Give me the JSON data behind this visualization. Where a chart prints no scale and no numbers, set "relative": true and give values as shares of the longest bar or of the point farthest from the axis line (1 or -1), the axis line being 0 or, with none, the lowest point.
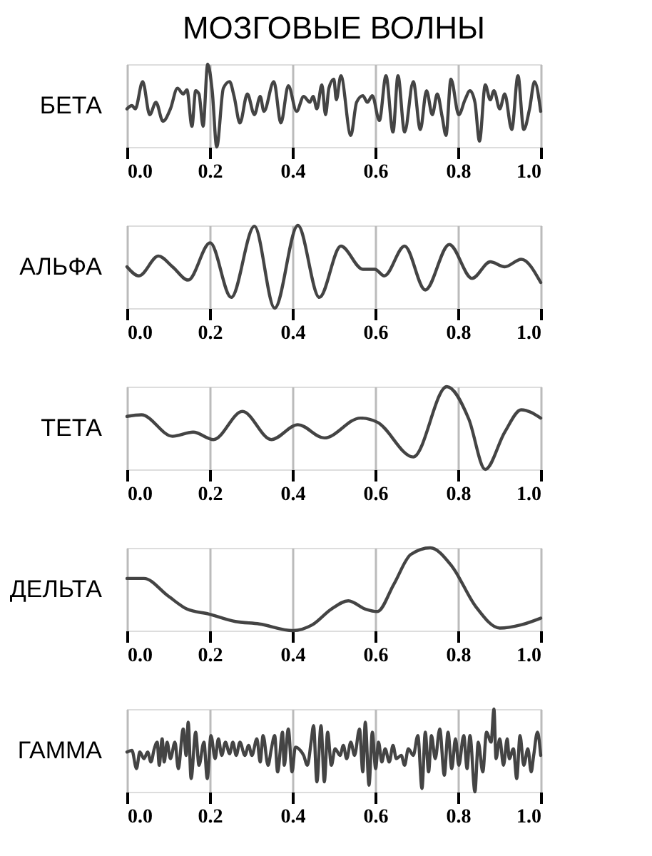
{
  "chart_data": [
    {
      "type": "line",
      "title": "МОЗГОВЫЕ ВОЛНЫ",
      "ylabel": "БЕТА",
      "relative": true,
      "grid": "x",
      "xlim": [
        0,
        1
      ],
      "xticks": [
        {
          "value": 0,
          "label": "0.0"
        },
        {
          "value": 0.2,
          "label": "0.2"
        },
        {
          "value": 0.4,
          "label": "0.4"
        },
        {
          "value": 0.6,
          "label": "0.6"
        },
        {
          "value": 0.8,
          "label": "0.8"
        },
        {
          "value": 1,
          "label": "1.0"
        }
      ],
      "x": [
        0.0,
        0.012,
        0.02,
        0.038,
        0.055,
        0.07,
        0.087,
        0.105,
        0.122,
        0.136,
        0.145,
        0.157,
        0.166,
        0.174,
        0.184,
        0.195,
        0.206,
        0.217,
        0.233,
        0.248,
        0.259,
        0.273,
        0.291,
        0.308,
        0.322,
        0.331,
        0.355,
        0.372,
        0.39,
        0.41,
        0.427,
        0.442,
        0.45,
        0.459,
        0.471,
        0.48,
        0.488,
        0.5,
        0.506,
        0.517,
        0.541,
        0.555,
        0.57,
        0.581,
        0.593,
        0.61,
        0.626,
        0.643,
        0.655,
        0.671,
        0.692,
        0.709,
        0.724,
        0.738,
        0.75,
        0.762,
        0.771,
        0.783,
        0.802,
        0.817,
        0.829,
        0.841,
        0.852,
        0.866,
        0.878,
        0.887,
        0.901,
        0.913,
        0.93,
        0.945,
        0.959,
        0.973,
        0.985,
        1.0
      ],
      "series": [
        {
          "color": "#444444",
          "values": [
            0.46,
            0.5,
            0.46,
            0.79,
            0.39,
            0.54,
            0.31,
            0.46,
            0.71,
            0.64,
            0.69,
            0.25,
            0.68,
            0.64,
            0.25,
            1.0,
            0.68,
            0.0,
            0.71,
            0.79,
            0.61,
            0.29,
            0.64,
            0.39,
            0.61,
            0.43,
            0.79,
            0.29,
            0.74,
            0.43,
            0.61,
            0.54,
            0.61,
            0.46,
            0.75,
            0.39,
            0.71,
            0.82,
            0.57,
            0.86,
            0.14,
            0.54,
            0.62,
            0.54,
            0.62,
            0.32,
            0.86,
            0.18,
            0.86,
            0.18,
            0.79,
            0.21,
            0.68,
            0.39,
            0.64,
            0.36,
            0.14,
            0.82,
            0.39,
            0.57,
            0.68,
            0.54,
            0.07,
            0.75,
            0.57,
            0.68,
            0.46,
            0.64,
            0.21,
            0.86,
            0.21,
            0.46,
            0.79,
            0.43
          ]
        }
      ]
    },
    {
      "type": "line",
      "ylabel": "АЛЬФА",
      "relative": true,
      "grid": "x",
      "xlim": [
        0,
        1
      ],
      "xticks": [
        {
          "value": 0,
          "label": "0.0"
        },
        {
          "value": 0.2,
          "label": "0.2"
        },
        {
          "value": 0.4,
          "label": "0.4"
        },
        {
          "value": 0.6,
          "label": "0.6"
        },
        {
          "value": 0.8,
          "label": "0.8"
        },
        {
          "value": 1,
          "label": "1.0"
        }
      ],
      "x": [
        0.0,
        0.029,
        0.076,
        0.11,
        0.148,
        0.201,
        0.252,
        0.308,
        0.357,
        0.413,
        0.465,
        0.517,
        0.57,
        0.599,
        0.622,
        0.671,
        0.721,
        0.779,
        0.834,
        0.878,
        0.913,
        0.953,
        1.0
      ],
      "series": [
        {
          "color": "#444444",
          "values": [
            0.5,
            0.39,
            0.63,
            0.5,
            0.34,
            0.79,
            0.13,
            0.99,
            0.0,
            1.0,
            0.13,
            0.75,
            0.47,
            0.47,
            0.39,
            0.75,
            0.22,
            0.77,
            0.36,
            0.56,
            0.5,
            0.59,
            0.31
          ]
        }
      ]
    },
    {
      "type": "line",
      "ylabel": "ТЕТА",
      "relative": true,
      "grid": "x",
      "xlim": [
        0,
        1
      ],
      "xticks": [
        {
          "value": 0,
          "label": "0.0"
        },
        {
          "value": 0.2,
          "label": "0.2"
        },
        {
          "value": 0.4,
          "label": "0.4"
        },
        {
          "value": 0.6,
          "label": "0.6"
        },
        {
          "value": 0.8,
          "label": "0.8"
        },
        {
          "value": 1,
          "label": "1.0"
        }
      ],
      "x": [
        0.0,
        0.035,
        0.11,
        0.16,
        0.209,
        0.279,
        0.349,
        0.413,
        0.477,
        0.564,
        0.605,
        0.692,
        0.773,
        0.826,
        0.866,
        0.913,
        0.953,
        1.0
      ],
      "series": [
        {
          "color": "#444444",
          "values": [
            0.64,
            0.66,
            0.4,
            0.45,
            0.36,
            0.7,
            0.36,
            0.54,
            0.38,
            0.62,
            0.57,
            0.15,
            1.0,
            0.61,
            0.0,
            0.45,
            0.72,
            0.62
          ]
        }
      ]
    },
    {
      "type": "line",
      "ylabel": "ДЕЛЬТА",
      "relative": true,
      "grid": "x",
      "xlim": [
        0,
        1
      ],
      "xticks": [
        {
          "value": 0,
          "label": "0.0"
        },
        {
          "value": 0.2,
          "label": "0.2"
        },
        {
          "value": 0.4,
          "label": "0.4"
        },
        {
          "value": 0.6,
          "label": "0.6"
        },
        {
          "value": 0.8,
          "label": "0.8"
        },
        {
          "value": 1,
          "label": "1.0"
        }
      ],
      "x": [
        0.0,
        0.041,
        0.099,
        0.145,
        0.198,
        0.262,
        0.32,
        0.401,
        0.448,
        0.494,
        0.535,
        0.576,
        0.605,
        0.645,
        0.686,
        0.733,
        0.785,
        0.843,
        0.901,
        0.953,
        1.0
      ],
      "series": [
        {
          "color": "#444444",
          "values": [
            0.63,
            0.63,
            0.42,
            0.26,
            0.2,
            0.11,
            0.08,
            0.0,
            0.07,
            0.26,
            0.36,
            0.26,
            0.23,
            0.56,
            0.92,
            1.0,
            0.78,
            0.29,
            0.03,
            0.07,
            0.15
          ]
        }
      ]
    },
    {
      "type": "line",
      "ylabel": "ГАММА",
      "relative": true,
      "grid": "x",
      "xlim": [
        0,
        1
      ],
      "xticks": [
        {
          "value": 0,
          "label": "0.0"
        },
        {
          "value": 0.2,
          "label": "0.2"
        },
        {
          "value": 0.4,
          "label": "0.4"
        },
        {
          "value": 0.6,
          "label": "0.6"
        },
        {
          "value": 0.8,
          "label": "0.8"
        },
        {
          "value": 1,
          "label": "1.0"
        }
      ],
      "x": [
        0.0,
        0.012,
        0.023,
        0.031,
        0.041,
        0.05,
        0.058,
        0.066,
        0.073,
        0.078,
        0.085,
        0.09,
        0.097,
        0.105,
        0.116,
        0.124,
        0.136,
        0.143,
        0.148,
        0.155,
        0.166,
        0.174,
        0.186,
        0.194,
        0.203,
        0.213,
        0.221,
        0.229,
        0.238,
        0.248,
        0.256,
        0.264,
        0.273,
        0.285,
        0.294,
        0.302,
        0.314,
        0.322,
        0.329,
        0.341,
        0.349,
        0.357,
        0.364,
        0.376,
        0.38,
        0.39,
        0.399,
        0.407,
        0.419,
        0.427,
        0.436,
        0.445,
        0.451,
        0.459,
        0.469,
        0.477,
        0.485,
        0.494,
        0.503,
        0.515,
        0.523,
        0.531,
        0.541,
        0.55,
        0.562,
        0.57,
        0.576,
        0.585,
        0.593,
        0.601,
        0.608,
        0.616,
        0.624,
        0.634,
        0.643,
        0.651,
        0.663,
        0.671,
        0.68,
        0.692,
        0.703,
        0.713,
        0.721,
        0.729,
        0.736,
        0.745,
        0.756,
        0.767,
        0.776,
        0.785,
        0.794,
        0.802,
        0.814,
        0.822,
        0.829,
        0.841,
        0.849,
        0.86,
        0.869,
        0.88,
        0.887,
        0.892,
        0.901,
        0.91,
        0.919,
        0.924,
        0.934,
        0.942,
        0.95,
        0.959,
        0.969,
        0.977,
        0.983,
        0.992,
        1.0
      ],
      "series": [
        {
          "color": "#444444",
          "values": [
            0.48,
            0.5,
            0.28,
            0.48,
            0.4,
            0.48,
            0.36,
            0.52,
            0.6,
            0.32,
            0.64,
            0.36,
            0.6,
            0.4,
            0.6,
            0.28,
            0.76,
            0.44,
            0.84,
            0.16,
            0.72,
            0.32,
            0.6,
            0.16,
            0.68,
            0.4,
            0.64,
            0.44,
            0.6,
            0.46,
            0.6,
            0.44,
            0.6,
            0.44,
            0.56,
            0.44,
            0.64,
            0.36,
            0.68,
            0.32,
            0.52,
            0.68,
            0.24,
            0.72,
            0.32,
            0.76,
            0.24,
            0.54,
            0.5,
            0.44,
            0.32,
            0.6,
            0.8,
            0.12,
            0.8,
            0.12,
            0.72,
            0.32,
            0.52,
            0.44,
            0.56,
            0.4,
            0.6,
            0.44,
            0.76,
            0.24,
            0.84,
            0.08,
            0.72,
            0.28,
            0.6,
            0.36,
            0.52,
            0.36,
            0.56,
            0.4,
            0.44,
            0.32,
            0.52,
            0.44,
            0.68,
            0.04,
            0.72,
            0.24,
            0.68,
            0.4,
            0.76,
            0.2,
            0.72,
            0.28,
            0.64,
            0.32,
            0.68,
            0.28,
            0.68,
            0.0,
            0.6,
            0.24,
            0.72,
            0.6,
            1.0,
            0.4,
            0.64,
            0.32,
            0.64,
            0.4,
            0.52,
            0.16,
            0.68,
            0.32,
            0.52,
            0.24,
            0.44,
            0.72,
            0.44
          ]
        }
      ]
    }
  ]
}
